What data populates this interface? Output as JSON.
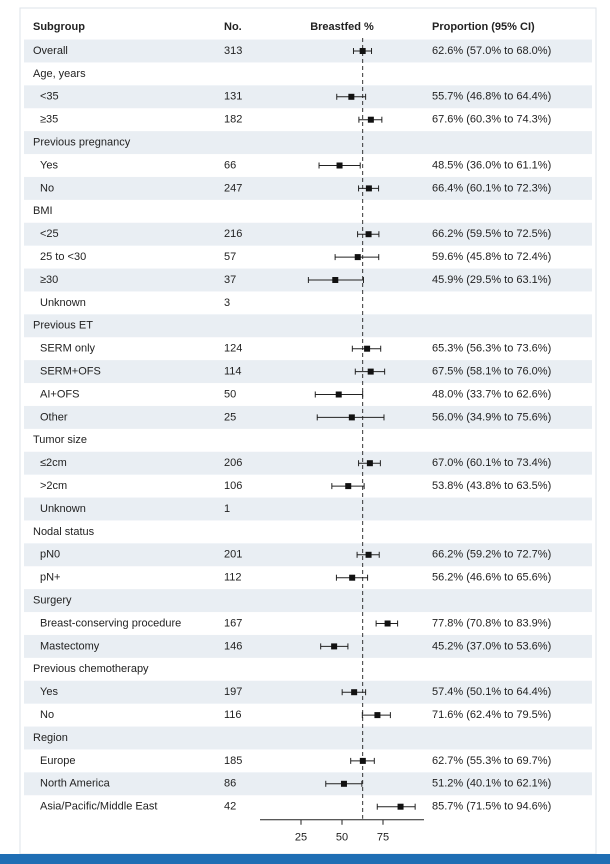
{
  "chart_data": {
    "type": "forest",
    "columns": [
      "Subgroup",
      "No.",
      "Breastfed %",
      "Proportion (95% CI)"
    ],
    "xlim": [
      0,
      100
    ],
    "xticks": [
      25,
      50,
      75
    ],
    "reference": 62.6,
    "overall": {
      "label": "Overall",
      "n": 313,
      "estimate": 62.6,
      "ci": [
        57.0,
        68.0
      ],
      "value_label": "62.6% (57.0% to 68.0%)"
    },
    "subgroups": [
      {
        "name": "Age, years",
        "rows": [
          {
            "label": "<35",
            "n": 131,
            "estimate": 55.7,
            "ci": [
              46.8,
              64.4
            ],
            "value_label": "55.7% (46.8% to 64.4%)"
          },
          {
            "label": "≥35",
            "n": 182,
            "estimate": 67.6,
            "ci": [
              60.3,
              74.3
            ],
            "value_label": "67.6% (60.3% to 74.3%)"
          }
        ]
      },
      {
        "name": "Previous pregnancy",
        "rows": [
          {
            "label": "Yes",
            "n": 66,
            "estimate": 48.5,
            "ci": [
              36.0,
              61.1
            ],
            "value_label": "48.5% (36.0% to 61.1%)"
          },
          {
            "label": "No",
            "n": 247,
            "estimate": 66.4,
            "ci": [
              60.1,
              72.3
            ],
            "value_label": "66.4% (60.1% to 72.3%)"
          }
        ]
      },
      {
        "name": "BMI",
        "rows": [
          {
            "label": "<25",
            "n": 216,
            "estimate": 66.2,
            "ci": [
              59.5,
              72.5
            ],
            "value_label": "66.2% (59.5% to 72.5%)"
          },
          {
            "label": "25 to <30",
            "n": 57,
            "estimate": 59.6,
            "ci": [
              45.8,
              72.4
            ],
            "value_label": "59.6% (45.8% to 72.4%)"
          },
          {
            "label": "≥30",
            "n": 37,
            "estimate": 45.9,
            "ci": [
              29.5,
              63.1
            ],
            "value_label": "45.9% (29.5% to 63.1%)"
          },
          {
            "label": "Unknown",
            "n": 3
          }
        ]
      },
      {
        "name": "Previous ET",
        "rows": [
          {
            "label": "SERM only",
            "n": 124,
            "estimate": 65.3,
            "ci": [
              56.3,
              73.6
            ],
            "value_label": "65.3% (56.3% to 73.6%)"
          },
          {
            "label": "SERM+OFS",
            "n": 114,
            "estimate": 67.5,
            "ci": [
              58.1,
              76.0
            ],
            "value_label": "67.5% (58.1% to 76.0%)"
          },
          {
            "label": "AI+OFS",
            "n": 50,
            "estimate": 48.0,
            "ci": [
              33.7,
              62.6
            ],
            "value_label": "48.0% (33.7% to 62.6%)"
          },
          {
            "label": "Other",
            "n": 25,
            "estimate": 56.0,
            "ci": [
              34.9,
              75.6
            ],
            "value_label": "56.0% (34.9% to 75.6%)"
          }
        ]
      },
      {
        "name": "Tumor size",
        "rows": [
          {
            "label": "≤2cm",
            "n": 206,
            "estimate": 67.0,
            "ci": [
              60.1,
              73.4
            ],
            "value_label": "67.0% (60.1% to 73.4%)"
          },
          {
            "label": ">2cm",
            "n": 106,
            "estimate": 53.8,
            "ci": [
              43.8,
              63.5
            ],
            "value_label": "53.8% (43.8% to 63.5%)"
          },
          {
            "label": "Unknown",
            "n": 1
          }
        ]
      },
      {
        "name": "Nodal status",
        "rows": [
          {
            "label": "pN0",
            "n": 201,
            "estimate": 66.2,
            "ci": [
              59.2,
              72.7
            ],
            "value_label": "66.2% (59.2% to 72.7%)"
          },
          {
            "label": "pN+",
            "n": 112,
            "estimate": 56.2,
            "ci": [
              46.6,
              65.6
            ],
            "value_label": "56.2% (46.6% to 65.6%)"
          }
        ]
      },
      {
        "name": "Surgery",
        "rows": [
          {
            "label": "Breast-conserving procedure",
            "n": 167,
            "estimate": 77.8,
            "ci": [
              70.8,
              83.9
            ],
            "value_label": "77.8% (70.8% to 83.9%)"
          },
          {
            "label": "Mastectomy",
            "n": 146,
            "estimate": 45.2,
            "ci": [
              37.0,
              53.6
            ],
            "value_label": "45.2% (37.0% to 53.6%)"
          }
        ]
      },
      {
        "name": "Previous chemotherapy",
        "rows": [
          {
            "label": "Yes",
            "n": 197,
            "estimate": 57.4,
            "ci": [
              50.1,
              64.4
            ],
            "value_label": "57.4% (50.1% to 64.4%)"
          },
          {
            "label": "No",
            "n": 116,
            "estimate": 71.6,
            "ci": [
              62.4,
              79.5
            ],
            "value_label": "71.6% (62.4% to 79.5%)"
          }
        ]
      },
      {
        "name": "Region",
        "rows": [
          {
            "label": "Europe",
            "n": 185,
            "estimate": 62.7,
            "ci": [
              55.3,
              69.7
            ],
            "value_label": "62.7% (55.3% to 69.7%)"
          },
          {
            "label": "North America",
            "n": 86,
            "estimate": 51.2,
            "ci": [
              40.1,
              62.1
            ],
            "value_label": "51.2% (40.1% to 62.1%)"
          },
          {
            "label": "Asia/Pacific/Middle East",
            "n": 42,
            "estimate": 85.7,
            "ci": [
              71.5,
              94.6
            ],
            "value_label": "85.7% (71.5% to 94.6%)"
          }
        ]
      }
    ]
  }
}
